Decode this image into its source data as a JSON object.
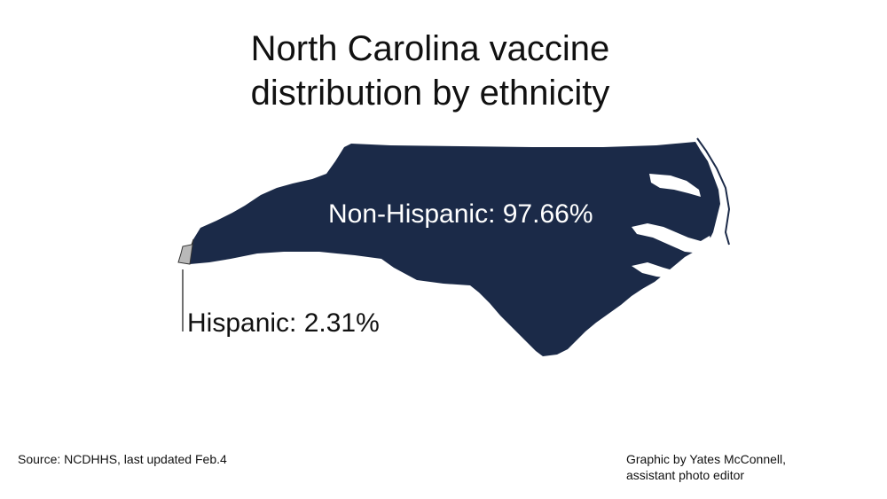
{
  "title": {
    "line1": "North Carolina vaccine",
    "line2": "distribution by ethnicity"
  },
  "source": "Source: NCDHHS, last updated Feb.4",
  "credit": {
    "line1": "Graphic by Yates McConnell,",
    "line2": "assistant photo editor"
  },
  "colors": {
    "non_hispanic": "#1b2a48",
    "hispanic": "#b9b9b9",
    "label_text_on_dark": "#ffffff",
    "text": "#111111"
  },
  "chart_data": {
    "type": "area",
    "title": "North Carolina vaccine distribution by ethnicity",
    "categories": [
      "Non-Hispanic",
      "Hispanic"
    ],
    "values": [
      97.66,
      2.31
    ],
    "unit": "%",
    "labels": [
      "Non-Hispanic: 97.66%",
      "Hispanic: 2.31%"
    ]
  }
}
